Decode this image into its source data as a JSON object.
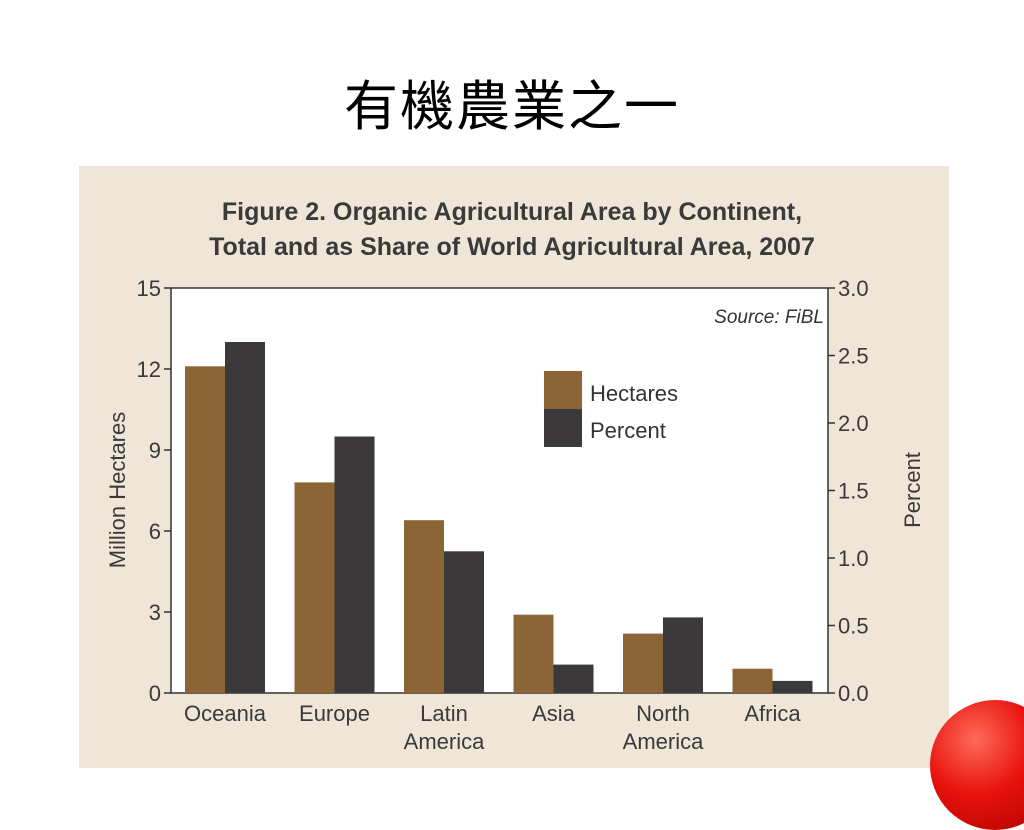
{
  "slide": {
    "title": "有機農業之一"
  },
  "colors": {
    "hectares": "#8c6536",
    "percent": "#3b3939",
    "panel": "#f0e6d8",
    "accent_ball": "#e8120c"
  },
  "chart_data": {
    "type": "bar",
    "title": "Figure 2. Organic Agricultural Area by Continent,",
    "subtitle": "Total and as Share of World Agricultural Area, 2007",
    "source": "Source: FiBL",
    "categories": [
      [
        "Oceania"
      ],
      [
        "Europe"
      ],
      [
        "Latin",
        "America"
      ],
      [
        "Asia"
      ],
      [
        "North",
        "America"
      ],
      [
        "Africa"
      ]
    ],
    "series": [
      {
        "name": "Hectares",
        "axis": "left",
        "values": [
          12.1,
          7.8,
          6.4,
          2.9,
          2.2,
          0.9
        ]
      },
      {
        "name": "Percent",
        "axis": "right",
        "values": [
          2.6,
          1.9,
          1.05,
          0.21,
          0.56,
          0.09
        ]
      }
    ],
    "ylabel": "Million Hectares",
    "ylabel_right": "Percent",
    "ylim": [
      0,
      15
    ],
    "ylim_right": [
      0,
      3.0
    ],
    "yticks": [
      "0",
      "3",
      "6",
      "9",
      "12",
      "15"
    ],
    "yticks_right": [
      "0.0",
      "0.5",
      "1.0",
      "1.5",
      "2.0",
      "2.5",
      "3.0"
    ],
    "legend": "inside-top-center",
    "grid": false
  }
}
